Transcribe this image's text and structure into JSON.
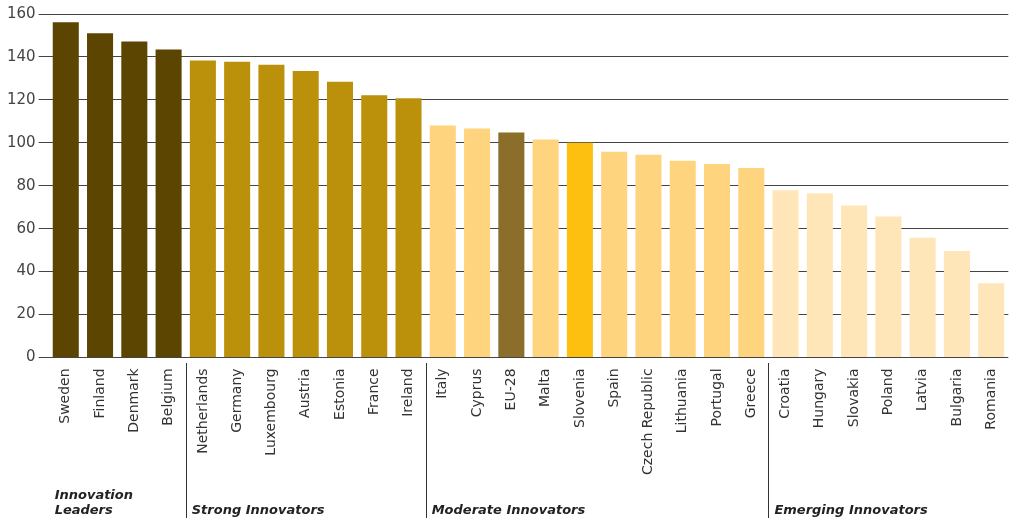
{
  "chart_data": {
    "type": "bar",
    "categories": [
      "Sweden",
      "Finland",
      "Denmark",
      "Belgium",
      "Netherlands",
      "Germany",
      "Luxembourg",
      "Austria",
      "Estonia",
      "France",
      "Ireland",
      "Italy",
      "Cyprus",
      "EU-28",
      "Malta",
      "Slovenia",
      "Spain",
      "Czech Republic",
      "Lithuania",
      "Portugal",
      "Greece",
      "Croatia",
      "Hungary",
      "Slovakia",
      "Poland",
      "Latvia",
      "Bulgaria",
      "Romania"
    ],
    "values": [
      156.2,
      151,
      147.2,
      143.5,
      138.3,
      137.8,
      136.4,
      133.5,
      128.4,
      122.2,
      120.7,
      108.1,
      106.7,
      104.8,
      101.5,
      100,
      95.8,
      94.4,
      91.6,
      90.1,
      88.2,
      77.9,
      76.5,
      70.8,
      65.6,
      55.7,
      49.6,
      34.5
    ],
    "colors": [
      "#5c4500",
      "#5c4500",
      "#5c4500",
      "#5c4500",
      "#bb900b",
      "#bb900b",
      "#bb900b",
      "#bb900b",
      "#bb900b",
      "#bb900b",
      "#bb900b",
      "#fed57e",
      "#fed57e",
      "#8a6e2a",
      "#fed57e",
      "#fdc010",
      "#fed57e",
      "#fed57e",
      "#fed57e",
      "#fed57e",
      "#fed57e",
      "#fee6b9",
      "#fee6b9",
      "#fee6b9",
      "#fee6b9",
      "#fee6b9",
      "#fee6b9",
      "#fee6b9"
    ],
    "ylim": [
      0,
      160
    ],
    "yticks": [
      0,
      20,
      40,
      60,
      80,
      100,
      120,
      140,
      160
    ],
    "grid": "y",
    "legend": false,
    "annotations": [
      "Innovation Leaders",
      "Strong Innovators",
      "Moderate Innovators",
      "Emerging Innovators"
    ]
  }
}
